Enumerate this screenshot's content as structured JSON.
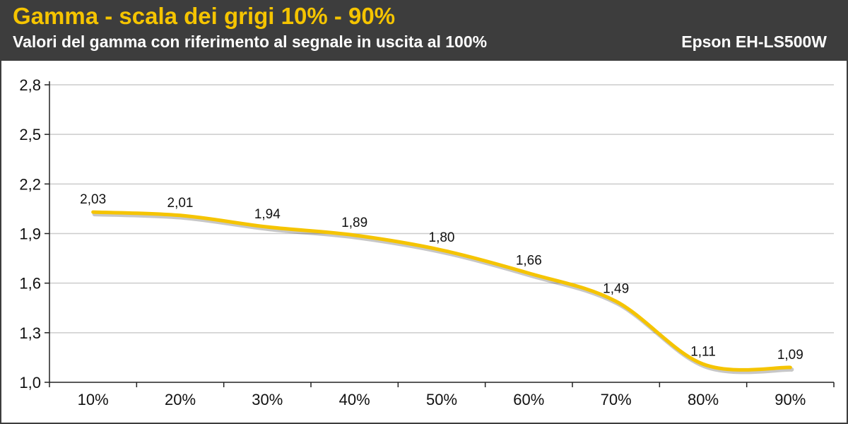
{
  "header": {
    "title": "Gamma - scala dei grigi 10% - 90%",
    "subtitle": "Valori del gamma con riferimento al segnale in uscita al 100%",
    "model": "Epson EH-LS500W"
  },
  "colors": {
    "header_bg": "#3d3d3d",
    "title": "#f5c400",
    "line": "#f5c400",
    "grid": "#cccccc"
  },
  "chart_data": {
    "type": "line",
    "categories": [
      "10%",
      "20%",
      "30%",
      "40%",
      "50%",
      "60%",
      "70%",
      "80%",
      "90%"
    ],
    "series": [
      {
        "values": [
          2.03,
          2.01,
          1.94,
          1.89,
          1.8,
          1.66,
          1.49,
          1.11,
          1.09
        ],
        "labels": [
          "2,03",
          "2,01",
          "1,94",
          "1,89",
          "1,80",
          "1,66",
          "1,49",
          "1,11",
          "1,09"
        ]
      }
    ],
    "ylim": [
      1.0,
      2.8
    ],
    "yticks": [
      1.0,
      1.3,
      1.6,
      1.9,
      2.2,
      2.5,
      2.8
    ],
    "ytick_labels": [
      "1,0",
      "1,3",
      "1,6",
      "1,9",
      "2,2",
      "2,5",
      "2,8"
    ],
    "grid": true,
    "smooth": true
  }
}
